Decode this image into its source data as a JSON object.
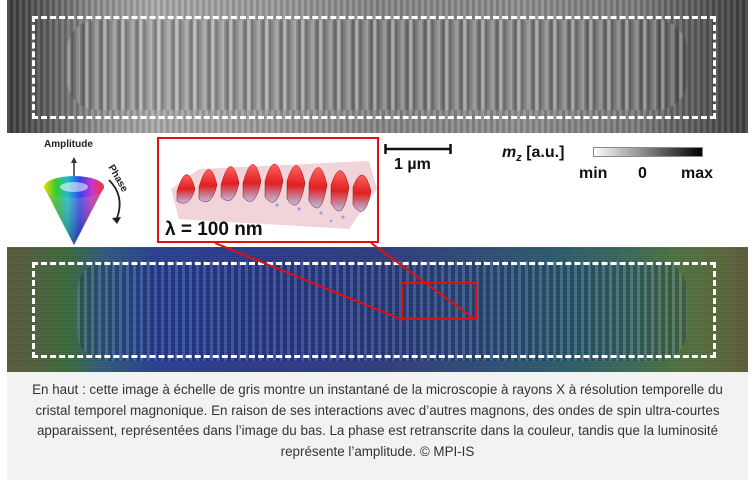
{
  "figure": {
    "cone_legend": {
      "amplitude_label": "Amplitude",
      "phase_label": "Phase"
    },
    "inset": {
      "wavelength_label": "λ = 100 nm"
    },
    "scalebar": {
      "label": "1 µm"
    },
    "colorbar": {
      "variable_symbol": "m",
      "variable_subscript": "z",
      "unit": "[a.u.]",
      "min_label": "min",
      "zero_label": "0",
      "max_label": "max"
    },
    "colors": {
      "highlight_red": "#e01010",
      "dashed_outline": "#ffffff"
    }
  },
  "caption": {
    "text": "En haut : cette image à échelle de gris montre un instantané de la microscopie à rayons X à résolution temporelle du cristal temporel magnonique. En raison de ses interactions avec d’autres magnons, des ondes de spin ultra-courtes apparaissent, représentées dans l’image du bas. La phase est retranscrite dans la couleur, tandis que la luminosité représente l’amplitude. © MPI-IS"
  }
}
